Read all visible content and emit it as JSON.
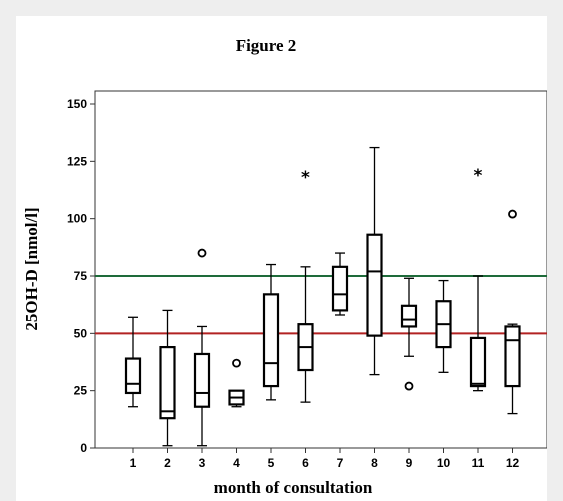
{
  "chart_data": {
    "type": "boxplot",
    "title": "Figure 2",
    "xlabel": "month of consultation",
    "ylabel": "25OH-D [nmol/l]",
    "ylim": [
      0,
      150
    ],
    "yticks": [
      0,
      25,
      50,
      75,
      100,
      125,
      150
    ],
    "categories": [
      "1",
      "2",
      "3",
      "4",
      "5",
      "6",
      "7",
      "8",
      "9",
      "10",
      "11",
      "12"
    ],
    "boxes": [
      {
        "category": "1",
        "min": 18,
        "q1": 24,
        "median": 28,
        "q3": 39,
        "max": 57,
        "outliers": [],
        "extremes": []
      },
      {
        "category": "2",
        "min": 1,
        "q1": 13,
        "median": 16,
        "q3": 44,
        "max": 60,
        "outliers": [],
        "extremes": []
      },
      {
        "category": "3",
        "min": 1,
        "q1": 18,
        "median": 24,
        "q3": 41,
        "max": 53,
        "outliers": [
          85
        ],
        "extremes": []
      },
      {
        "category": "4",
        "min": 18,
        "q1": 19,
        "median": 22,
        "q3": 25,
        "max": 25,
        "outliers": [
          37
        ],
        "extremes": []
      },
      {
        "category": "5",
        "min": 21,
        "q1": 27,
        "median": 37,
        "q3": 67,
        "max": 80,
        "outliers": [],
        "extremes": []
      },
      {
        "category": "6",
        "min": 20,
        "q1": 34,
        "median": 44,
        "q3": 54,
        "max": 79,
        "outliers": [],
        "extremes": [
          119
        ]
      },
      {
        "category": "7",
        "min": 58,
        "q1": 60,
        "median": 67,
        "q3": 79,
        "max": 85,
        "outliers": [],
        "extremes": []
      },
      {
        "category": "8",
        "min": 32,
        "q1": 49,
        "median": 77,
        "q3": 93,
        "max": 131,
        "outliers": [],
        "extremes": []
      },
      {
        "category": "9",
        "min": 40,
        "q1": 53,
        "median": 56,
        "q3": 62,
        "max": 74,
        "outliers": [
          27
        ],
        "extremes": []
      },
      {
        "category": "10",
        "min": 33,
        "q1": 44,
        "median": 54,
        "q3": 64,
        "max": 73,
        "outliers": [],
        "extremes": []
      },
      {
        "category": "11",
        "min": 25,
        "q1": 27,
        "median": 28,
        "q3": 48,
        "max": 75,
        "outliers": [],
        "extremes": [
          120
        ]
      },
      {
        "category": "12",
        "min": 15,
        "q1": 27,
        "median": 47,
        "q3": 53,
        "max": 54,
        "outliers": [
          102
        ],
        "extremes": []
      }
    ],
    "reference_lines": [
      {
        "value": 75,
        "color": "#1e6b3a"
      },
      {
        "value": 50,
        "color": "#b22222"
      }
    ],
    "grid": false,
    "legend": "none"
  }
}
